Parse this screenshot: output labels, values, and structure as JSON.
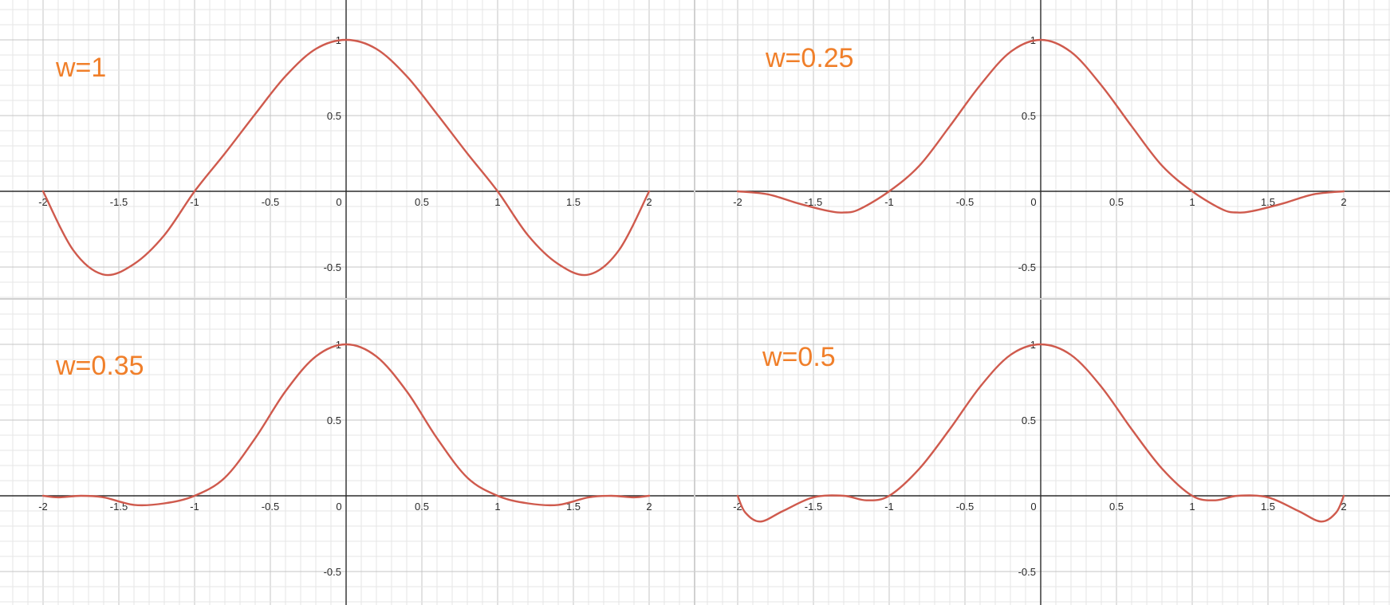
{
  "chart_data": [
    {
      "type": "line",
      "annotation": "w=1",
      "xlim": [
        -2.28,
        2.31
      ],
      "ylim": [
        -0.75,
        1.27
      ],
      "grid": true,
      "x_ticks": [
        "-2",
        "-1.5",
        "-1",
        "-0.5",
        "0",
        "0.5",
        "1",
        "1.5",
        "2"
      ],
      "y_ticks": [
        "1",
        "0.5",
        "-0.5"
      ],
      "x": [
        -2,
        -1.8,
        -1.6,
        -1.4,
        -1.2,
        -1,
        -0.8,
        -0.6,
        -0.4,
        -0.2,
        0,
        0.2,
        0.4,
        0.6,
        0.8,
        1,
        1.2,
        1.4,
        1.6,
        1.8,
        2
      ],
      "y": [
        0,
        -0.39,
        -0.55,
        -0.48,
        -0.29,
        0,
        0.25,
        0.51,
        0.76,
        0.94,
        1,
        0.94,
        0.76,
        0.51,
        0.25,
        0,
        -0.29,
        -0.48,
        -0.55,
        -0.39,
        0
      ]
    },
    {
      "type": "line",
      "annotation": "w=0.25",
      "xlim": [
        -2.28,
        2.31
      ],
      "ylim": [
        -0.75,
        1.27
      ],
      "grid": true,
      "x_ticks": [
        "-2",
        "-1.5",
        "-1",
        "-0.5",
        "0",
        "0.5",
        "1",
        "1.5",
        "2"
      ],
      "y_ticks": [
        "1",
        "0.5",
        "-0.5"
      ],
      "x": [
        -2,
        -1.8,
        -1.6,
        -1.4,
        -1.3,
        -1.2,
        -1,
        -0.8,
        -0.6,
        -0.4,
        -0.2,
        0,
        0.2,
        0.4,
        0.6,
        0.8,
        1,
        1.2,
        1.3,
        1.4,
        1.6,
        1.8,
        2
      ],
      "y": [
        0,
        -0.02,
        -0.08,
        -0.13,
        -0.14,
        -0.12,
        0,
        0.17,
        0.43,
        0.7,
        0.92,
        1,
        0.92,
        0.7,
        0.43,
        0.17,
        0,
        -0.12,
        -0.14,
        -0.13,
        -0.08,
        -0.02,
        0
      ]
    },
    {
      "type": "line",
      "annotation": "w=0.35",
      "xlim": [
        -2.28,
        2.31
      ],
      "ylim": [
        -0.75,
        1.27
      ],
      "grid": true,
      "x_ticks": [
        "-2",
        "-1.5",
        "-1",
        "-0.5",
        "0",
        "0.5",
        "1",
        "1.5",
        "2"
      ],
      "y_ticks": [
        "1",
        "0.5",
        "-0.5"
      ],
      "x": [
        -2,
        -1.9,
        -1.75,
        -1.6,
        -1.4,
        -1.2,
        -1,
        -0.8,
        -0.6,
        -0.4,
        -0.2,
        0,
        0.2,
        0.4,
        0.6,
        0.8,
        1,
        1.2,
        1.4,
        1.6,
        1.75,
        1.9,
        2
      ],
      "y": [
        0,
        -0.01,
        0,
        -0.01,
        -0.06,
        -0.05,
        0,
        0.12,
        0.38,
        0.69,
        0.92,
        1,
        0.92,
        0.69,
        0.38,
        0.12,
        0,
        -0.05,
        -0.06,
        -0.01,
        0,
        -0.01,
        0
      ]
    },
    {
      "type": "line",
      "annotation": "w=0.5",
      "xlim": [
        -2.28,
        2.31
      ],
      "ylim": [
        -0.75,
        1.27
      ],
      "grid": true,
      "x_ticks": [
        "-2",
        "-1.5",
        "-1",
        "-0.5",
        "0",
        "0.5",
        "1",
        "1.5",
        "2"
      ],
      "y_ticks": [
        "1",
        "0.5",
        "-0.5"
      ],
      "x": [
        -2,
        -1.95,
        -1.85,
        -1.7,
        -1.5,
        -1.3,
        -1.15,
        -1,
        -0.8,
        -0.6,
        -0.4,
        -0.2,
        0,
        0.2,
        0.4,
        0.6,
        0.8,
        1,
        1.15,
        1.3,
        1.5,
        1.7,
        1.85,
        1.95,
        2
      ],
      "y": [
        0,
        -0.11,
        -0.17,
        -0.1,
        -0.01,
        0,
        -0.03,
        0,
        0.18,
        0.44,
        0.72,
        0.93,
        1,
        0.93,
        0.72,
        0.44,
        0.18,
        0,
        -0.03,
        0,
        -0.01,
        -0.1,
        -0.17,
        -0.11,
        0
      ]
    }
  ]
}
